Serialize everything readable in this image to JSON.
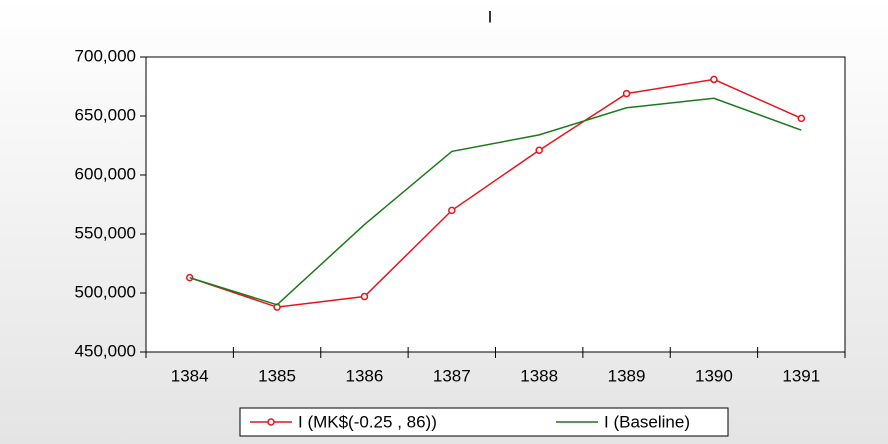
{
  "chart_data": {
    "type": "line",
    "title": "I",
    "categories": [
      "1384",
      "1385",
      "1386",
      "1387",
      "1388",
      "1389",
      "1390",
      "1391"
    ],
    "series": [
      {
        "name": "I (MK$(-0.25 , 86))",
        "color": "#e8141b",
        "marker": "circle",
        "values": [
          513000,
          488000,
          497000,
          570000,
          621000,
          669000,
          681000,
          648000
        ]
      },
      {
        "name": "I (Baseline)",
        "color": "#1a7a1a",
        "values": [
          513000,
          490000,
          558000,
          620000,
          634000,
          657000,
          665000,
          638000
        ]
      }
    ],
    "ylim": [
      450000,
      700000
    ],
    "yticks": [
      {
        "value": 450000,
        "label": "450,000"
      },
      {
        "value": 500000,
        "label": "500,000"
      },
      {
        "value": 550000,
        "label": "550,000"
      },
      {
        "value": 600000,
        "label": "600,000"
      },
      {
        "value": 650000,
        "label": "650,000"
      },
      {
        "value": 700000,
        "label": "700,000"
      }
    ],
    "legend": "bottom"
  }
}
